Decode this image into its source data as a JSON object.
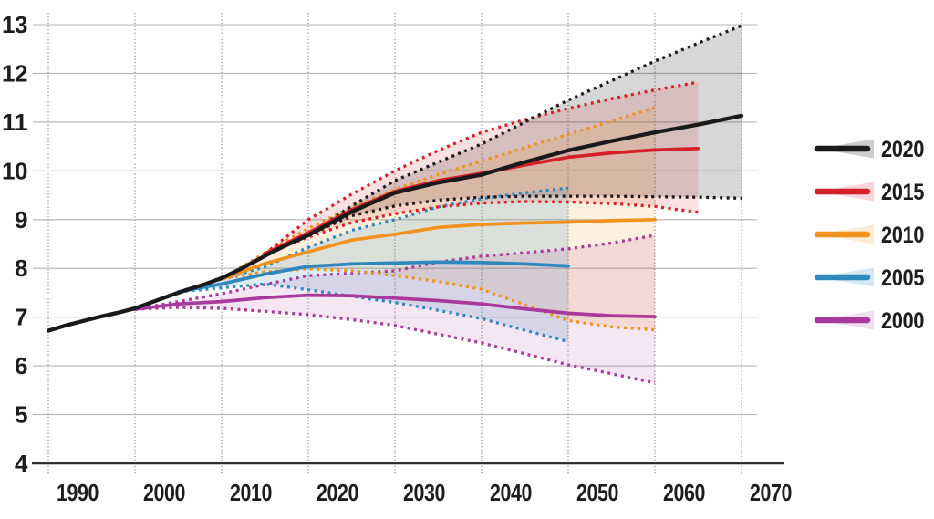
{
  "page": {
    "background": "#ffffff"
  },
  "chart_data": {
    "type": "line",
    "title": "",
    "xlabel": "",
    "ylabel": "",
    "xlim": [
      1988,
      2075
    ],
    "ylim": [
      4,
      13
    ],
    "grid": true,
    "legend_position": "right",
    "x_ticks": [
      1990,
      2000,
      2010,
      2020,
      2030,
      2040,
      2050,
      2060,
      2070
    ],
    "y_ticks": [
      4,
      5,
      6,
      7,
      8,
      9,
      10,
      11,
      12,
      13
    ],
    "series": [
      {
        "name": "2020",
        "color": "#1a1a1a",
        "fill_color": "#000000",
        "fill_opacity": 0.155,
        "median": [
          [
            1990,
            6.72
          ],
          [
            1992,
            6.83
          ],
          [
            1994,
            6.92
          ],
          [
            1996,
            7.01
          ],
          [
            1998,
            7.09
          ],
          [
            2000,
            7.18
          ],
          [
            2002,
            7.31
          ],
          [
            2004,
            7.44
          ],
          [
            2006,
            7.56
          ],
          [
            2008,
            7.67
          ],
          [
            2010,
            7.8
          ],
          [
            2012,
            7.97
          ],
          [
            2014,
            8.16
          ],
          [
            2016,
            8.35
          ],
          [
            2018,
            8.52
          ],
          [
            2020,
            8.68
          ],
          [
            2025,
            9.16
          ],
          [
            2030,
            9.55
          ],
          [
            2035,
            9.76
          ],
          [
            2040,
            9.92
          ],
          [
            2045,
            10.18
          ],
          [
            2050,
            10.42
          ],
          [
            2055,
            10.61
          ],
          [
            2060,
            10.79
          ],
          [
            2065,
            10.95
          ],
          [
            2070,
            11.13
          ]
        ],
        "upper": [
          [
            2020,
            8.68
          ],
          [
            2025,
            9.28
          ],
          [
            2030,
            9.8
          ],
          [
            2035,
            10.18
          ],
          [
            2040,
            10.55
          ],
          [
            2045,
            11.0
          ],
          [
            2050,
            11.45
          ],
          [
            2055,
            11.85
          ],
          [
            2060,
            12.25
          ],
          [
            2065,
            12.62
          ],
          [
            2070,
            12.98
          ]
        ],
        "lower": [
          [
            2020,
            8.68
          ],
          [
            2025,
            9.08
          ],
          [
            2030,
            9.28
          ],
          [
            2035,
            9.4
          ],
          [
            2040,
            9.46
          ],
          [
            2045,
            9.48
          ],
          [
            2050,
            9.48
          ],
          [
            2055,
            9.48
          ],
          [
            2060,
            9.47
          ],
          [
            2065,
            9.46
          ],
          [
            2070,
            9.44
          ]
        ]
      },
      {
        "name": "2015",
        "color": "#d5202a",
        "fill_color": "#d5202a",
        "fill_opacity": 0.14,
        "median": [
          [
            2015,
            8.3
          ],
          [
            2020,
            8.73
          ],
          [
            2025,
            9.2
          ],
          [
            2030,
            9.58
          ],
          [
            2035,
            9.8
          ],
          [
            2040,
            9.95
          ],
          [
            2045,
            10.12
          ],
          [
            2050,
            10.28
          ],
          [
            2055,
            10.37
          ],
          [
            2060,
            10.43
          ],
          [
            2065,
            10.46
          ]
        ],
        "upper": [
          [
            2015,
            8.3
          ],
          [
            2020,
            9.0
          ],
          [
            2025,
            9.52
          ],
          [
            2030,
            10.0
          ],
          [
            2035,
            10.42
          ],
          [
            2040,
            10.79
          ],
          [
            2045,
            11.05
          ],
          [
            2050,
            11.28
          ],
          [
            2055,
            11.48
          ],
          [
            2060,
            11.66
          ],
          [
            2065,
            11.82
          ]
        ],
        "lower": [
          [
            2015,
            8.3
          ],
          [
            2020,
            8.64
          ],
          [
            2025,
            8.94
          ],
          [
            2030,
            9.12
          ],
          [
            2035,
            9.26
          ],
          [
            2040,
            9.34
          ],
          [
            2045,
            9.37
          ],
          [
            2050,
            9.36
          ],
          [
            2055,
            9.33
          ],
          [
            2060,
            9.27
          ],
          [
            2065,
            9.15
          ]
        ]
      },
      {
        "name": "2010",
        "color": "#f0921d",
        "fill_color": "#f0921d",
        "fill_opacity": 0.14,
        "median": [
          [
            2010,
            7.78
          ],
          [
            2015,
            8.1
          ],
          [
            2020,
            8.34
          ],
          [
            2025,
            8.58
          ],
          [
            2030,
            8.7
          ],
          [
            2035,
            8.84
          ],
          [
            2040,
            8.9
          ],
          [
            2045,
            8.93
          ],
          [
            2050,
            8.95
          ],
          [
            2055,
            8.98
          ],
          [
            2060,
            9.0
          ]
        ],
        "upper": [
          [
            2010,
            7.78
          ],
          [
            2015,
            8.32
          ],
          [
            2020,
            8.82
          ],
          [
            2025,
            9.25
          ],
          [
            2030,
            9.62
          ],
          [
            2035,
            9.93
          ],
          [
            2040,
            10.2
          ],
          [
            2045,
            10.48
          ],
          [
            2050,
            10.75
          ],
          [
            2055,
            11.02
          ],
          [
            2060,
            11.3
          ]
        ],
        "lower": [
          [
            2010,
            7.78
          ],
          [
            2015,
            7.93
          ],
          [
            2020,
            7.99
          ],
          [
            2025,
            7.95
          ],
          [
            2030,
            7.85
          ],
          [
            2035,
            7.73
          ],
          [
            2040,
            7.57
          ],
          [
            2045,
            7.25
          ],
          [
            2050,
            6.93
          ],
          [
            2055,
            6.8
          ],
          [
            2060,
            6.74
          ]
        ]
      },
      {
        "name": "2005",
        "color": "#2e87bd",
        "fill_color": "#2e87bd",
        "fill_opacity": 0.16,
        "median": [
          [
            2005,
            7.52
          ],
          [
            2010,
            7.68
          ],
          [
            2015,
            7.88
          ],
          [
            2020,
            8.04
          ],
          [
            2025,
            8.09
          ],
          [
            2030,
            8.11
          ],
          [
            2035,
            8.13
          ],
          [
            2040,
            8.12
          ],
          [
            2045,
            8.09
          ],
          [
            2050,
            8.05
          ]
        ],
        "upper": [
          [
            2005,
            7.52
          ],
          [
            2010,
            7.78
          ],
          [
            2015,
            8.03
          ],
          [
            2020,
            8.43
          ],
          [
            2025,
            8.78
          ],
          [
            2030,
            9.0
          ],
          [
            2035,
            9.26
          ],
          [
            2040,
            9.43
          ],
          [
            2045,
            9.55
          ],
          [
            2050,
            9.65
          ]
        ],
        "lower": [
          [
            2005,
            7.52
          ],
          [
            2010,
            7.6
          ],
          [
            2015,
            7.68
          ],
          [
            2020,
            7.56
          ],
          [
            2025,
            7.43
          ],
          [
            2030,
            7.3
          ],
          [
            2035,
            7.14
          ],
          [
            2040,
            6.97
          ],
          [
            2045,
            6.73
          ],
          [
            2050,
            6.5
          ]
        ]
      },
      {
        "name": "2000",
        "color": "#a93a9c",
        "fill_color": "#a93a9c",
        "fill_opacity": 0.13,
        "median": [
          [
            2000,
            7.16
          ],
          [
            2005,
            7.27
          ],
          [
            2010,
            7.32
          ],
          [
            2015,
            7.4
          ],
          [
            2020,
            7.45
          ],
          [
            2025,
            7.44
          ],
          [
            2030,
            7.39
          ],
          [
            2035,
            7.34
          ],
          [
            2040,
            7.27
          ],
          [
            2045,
            7.17
          ],
          [
            2050,
            7.08
          ],
          [
            2055,
            7.03
          ],
          [
            2060,
            7.01
          ]
        ],
        "upper": [
          [
            2000,
            7.16
          ],
          [
            2005,
            7.32
          ],
          [
            2010,
            7.48
          ],
          [
            2015,
            7.67
          ],
          [
            2020,
            7.85
          ],
          [
            2025,
            7.9
          ],
          [
            2030,
            7.95
          ],
          [
            2035,
            8.13
          ],
          [
            2040,
            8.25
          ],
          [
            2045,
            8.32
          ],
          [
            2050,
            8.4
          ],
          [
            2055,
            8.52
          ],
          [
            2060,
            8.68
          ]
        ],
        "lower": [
          [
            2000,
            7.16
          ],
          [
            2005,
            7.2
          ],
          [
            2010,
            7.18
          ],
          [
            2015,
            7.12
          ],
          [
            2020,
            7.05
          ],
          [
            2025,
            6.95
          ],
          [
            2030,
            6.83
          ],
          [
            2035,
            6.65
          ],
          [
            2040,
            6.47
          ],
          [
            2045,
            6.25
          ],
          [
            2050,
            6.02
          ],
          [
            2055,
            5.84
          ],
          [
            2060,
            5.65
          ]
        ]
      }
    ],
    "legend_labels": [
      "2020",
      "2015",
      "2010",
      "2005",
      "2000"
    ],
    "colors": {
      "grid_light": "#b3b3b3",
      "grid_dotted": "#9c9c9c",
      "axis_dark": "#2e2e2e",
      "label_text": "#1d1d1b"
    }
  }
}
